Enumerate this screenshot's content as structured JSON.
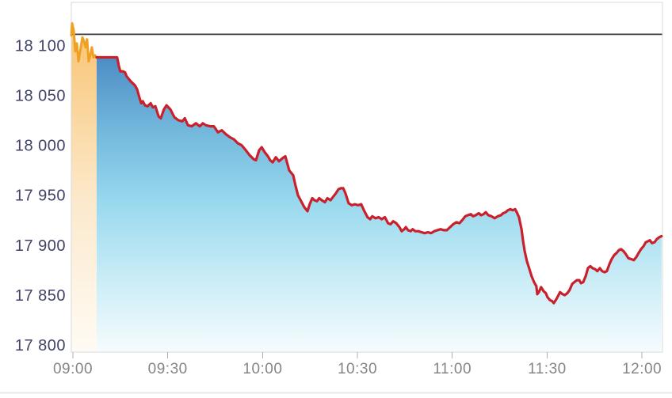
{
  "page": {
    "background": "#ffffff",
    "divider_color": "#e2e8ed"
  },
  "chart_data": {
    "type": "area",
    "x_axis": {
      "tick_labels": [
        "09:00",
        "09:30",
        "10:00",
        "10:30",
        "11:00",
        "11:30",
        "12:00"
      ],
      "tick_minutes": [
        0,
        30,
        60,
        90,
        120,
        150,
        180
      ],
      "range_minutes": [
        -0.5,
        186.5
      ],
      "label_color": "#858585",
      "grid": false
    },
    "y_axis": {
      "tick_labels": [
        "18 100",
        "18 050",
        "18 000",
        "17 950",
        "17 900",
        "17 850",
        "17 800"
      ],
      "tick_values": [
        18100,
        18050,
        18000,
        17950,
        17900,
        17850,
        17800
      ],
      "range": [
        17793,
        18143
      ],
      "label_color": "#424269",
      "grid": false
    },
    "previous_close": {
      "value": 18111,
      "line_color": "#3c3c3c"
    },
    "axis_style": {
      "border_color": "#dadada",
      "tick_color": "#b0b0b0"
    },
    "series": [
      {
        "name": "opening-auction-segment",
        "line_color": "#f0a124",
        "line_width": 3,
        "fill_stops": [
          [
            0,
            "#f9c87c"
          ],
          [
            0.5,
            "#fce9cc"
          ],
          [
            1,
            "#fefbf4"
          ]
        ],
        "points": [
          [
            -0.5,
            18110
          ],
          [
            -0.25,
            18122
          ],
          [
            0.25,
            18115
          ],
          [
            0.75,
            18094
          ],
          [
            1.25,
            18102
          ],
          [
            1.75,
            18084
          ],
          [
            2.5,
            18098
          ],
          [
            3,
            18108
          ],
          [
            3.5,
            18104
          ],
          [
            4,
            18098
          ],
          [
            4.5,
            18106
          ],
          [
            5,
            18084
          ],
          [
            5.5,
            18090
          ],
          [
            6,
            18098
          ],
          [
            6.5,
            18088
          ],
          [
            7,
            18090
          ],
          [
            7.5,
            18088
          ]
        ]
      },
      {
        "name": "main-session-segment",
        "line_color": "#c9202c",
        "line_width": 3.2,
        "fill_stops": [
          [
            0,
            "#4788c1"
          ],
          [
            0.25,
            "#6fb4da"
          ],
          [
            0.5,
            "#97d8ee"
          ],
          [
            0.75,
            "#c8ecf6"
          ],
          [
            1,
            "#f6fcfe"
          ]
        ],
        "points": [
          [
            7.5,
            18088
          ],
          [
            10,
            18088
          ],
          [
            12,
            18088
          ],
          [
            14,
            18088
          ],
          [
            14.5,
            18080
          ],
          [
            15,
            18074
          ],
          [
            15.8,
            18074
          ],
          [
            16.5,
            18073
          ],
          [
            17,
            18069
          ],
          [
            18.3,
            18064
          ],
          [
            19.6,
            18060
          ],
          [
            20.3,
            18056
          ],
          [
            21.1,
            18047
          ],
          [
            21.6,
            18042
          ],
          [
            22.1,
            18044
          ],
          [
            22.8,
            18040
          ],
          [
            23.6,
            18039
          ],
          [
            24.6,
            18042
          ],
          [
            25.3,
            18038
          ],
          [
            26.1,
            18039
          ],
          [
            27.1,
            18029
          ],
          [
            27.8,
            18027
          ],
          [
            28.8,
            18036
          ],
          [
            29.6,
            18040
          ],
          [
            30.8,
            18036
          ],
          [
            32.1,
            18028
          ],
          [
            33.4,
            18025
          ],
          [
            34.6,
            18024
          ],
          [
            35.4,
            18027
          ],
          [
            36.4,
            18020
          ],
          [
            37.6,
            18019
          ],
          [
            38.9,
            18022
          ],
          [
            40.1,
            18019
          ],
          [
            41.1,
            18022
          ],
          [
            42.1,
            18020
          ],
          [
            43.4,
            18019
          ],
          [
            44.6,
            18019
          ],
          [
            45.9,
            18013
          ],
          [
            47.1,
            18015
          ],
          [
            48.4,
            18011
          ],
          [
            49.7,
            18008
          ],
          [
            50.9,
            18006
          ],
          [
            52.2,
            18002
          ],
          [
            53.4,
            18000
          ],
          [
            54.7,
            17995
          ],
          [
            55.9,
            17990
          ],
          [
            57.2,
            17986
          ],
          [
            57.9,
            17985
          ],
          [
            58.9,
            17995
          ],
          [
            59.7,
            17998
          ],
          [
            60.7,
            17993
          ],
          [
            61.7,
            17989
          ],
          [
            62.4,
            17985
          ],
          [
            63.2,
            17983
          ],
          [
            64.2,
            17988
          ],
          [
            65.2,
            17984
          ],
          [
            65.9,
            17986
          ],
          [
            66.7,
            17988
          ],
          [
            67.2,
            17989
          ],
          [
            68.4,
            17975
          ],
          [
            69.7,
            17970
          ],
          [
            70.4,
            17960
          ],
          [
            71.2,
            17950
          ],
          [
            72.2,
            17944
          ],
          [
            73.2,
            17938
          ],
          [
            74.2,
            17934
          ],
          [
            74.9,
            17941
          ],
          [
            75.7,
            17947
          ],
          [
            76.4,
            17945
          ],
          [
            77.2,
            17944
          ],
          [
            77.9,
            17947
          ],
          [
            78.7,
            17945
          ],
          [
            79.7,
            17943
          ],
          [
            80.5,
            17947
          ],
          [
            81.5,
            17945
          ],
          [
            82.2,
            17948
          ],
          [
            83.2,
            17952
          ],
          [
            84,
            17956
          ],
          [
            84.7,
            17957
          ],
          [
            85.5,
            17957
          ],
          [
            86.2,
            17952
          ],
          [
            87.2,
            17942
          ],
          [
            88.2,
            17940
          ],
          [
            89.2,
            17941
          ],
          [
            90.2,
            17940
          ],
          [
            91.2,
            17941
          ],
          [
            92.2,
            17934
          ],
          [
            93.2,
            17928
          ],
          [
            94,
            17926
          ],
          [
            94.7,
            17929
          ],
          [
            95.7,
            17927
          ],
          [
            96.7,
            17928
          ],
          [
            97.7,
            17926
          ],
          [
            98.7,
            17928
          ],
          [
            99.7,
            17922
          ],
          [
            100.5,
            17921
          ],
          [
            101.3,
            17924
          ],
          [
            102.3,
            17922
          ],
          [
            103.3,
            17918
          ],
          [
            104,
            17914
          ],
          [
            104.8,
            17916
          ],
          [
            105.3,
            17918
          ],
          [
            106,
            17915
          ],
          [
            106.8,
            17914
          ],
          [
            107.5,
            17916
          ],
          [
            108.3,
            17914
          ],
          [
            109.3,
            17914
          ],
          [
            110.3,
            17913
          ],
          [
            111.3,
            17912
          ],
          [
            112.3,
            17913
          ],
          [
            113.3,
            17912
          ],
          [
            114.3,
            17914
          ],
          [
            115.3,
            17915
          ],
          [
            116.3,
            17916
          ],
          [
            117.3,
            17915
          ],
          [
            118.3,
            17915
          ],
          [
            119.3,
            17918
          ],
          [
            120.3,
            17921
          ],
          [
            121.3,
            17923
          ],
          [
            122.3,
            17922
          ],
          [
            123.4,
            17926
          ],
          [
            124.1,
            17929
          ],
          [
            124.9,
            17930
          ],
          [
            125.9,
            17931
          ],
          [
            126.6,
            17929
          ],
          [
            127.4,
            17930
          ],
          [
            128.4,
            17932
          ],
          [
            129.1,
            17930
          ],
          [
            129.9,
            17931
          ],
          [
            130.6,
            17933
          ],
          [
            131.4,
            17930
          ],
          [
            132.4,
            17929
          ],
          [
            133.4,
            17927
          ],
          [
            134.4,
            17929
          ],
          [
            135.4,
            17930
          ],
          [
            136.1,
            17932
          ],
          [
            136.9,
            17933
          ],
          [
            137.6,
            17935
          ],
          [
            138.4,
            17936
          ],
          [
            139.1,
            17935
          ],
          [
            139.9,
            17936
          ],
          [
            140.4,
            17933
          ],
          [
            141.1,
            17928
          ],
          [
            141.9,
            17916
          ],
          [
            142.4,
            17904
          ],
          [
            142.9,
            17894
          ],
          [
            143.6,
            17884
          ],
          [
            144.4,
            17876
          ],
          [
            145.1,
            17869
          ],
          [
            145.9,
            17863
          ],
          [
            146.6,
            17859
          ],
          [
            146.9,
            17851
          ],
          [
            147.4,
            17853
          ],
          [
            148.1,
            17858
          ],
          [
            148.9,
            17854
          ],
          [
            149.6,
            17852
          ],
          [
            150.1,
            17848
          ],
          [
            150.9,
            17845
          ],
          [
            151.6,
            17844
          ],
          [
            152.1,
            17842
          ],
          [
            152.9,
            17846
          ],
          [
            153.6,
            17850
          ],
          [
            154.1,
            17853
          ],
          [
            154.9,
            17851
          ],
          [
            155.6,
            17850
          ],
          [
            156.4,
            17852
          ],
          [
            157.1,
            17855
          ],
          [
            157.9,
            17861
          ],
          [
            158.6,
            17863
          ],
          [
            159.4,
            17865
          ],
          [
            160.2,
            17865
          ],
          [
            160.7,
            17862
          ],
          [
            161.4,
            17863
          ],
          [
            162.2,
            17869
          ],
          [
            162.9,
            17877
          ],
          [
            163.7,
            17879
          ],
          [
            164.4,
            17877
          ],
          [
            165.2,
            17876
          ],
          [
            165.9,
            17874
          ],
          [
            166.7,
            17877
          ],
          [
            167.4,
            17874
          ],
          [
            168.2,
            17873
          ],
          [
            168.9,
            17874
          ],
          [
            169.7,
            17881
          ],
          [
            170.4,
            17886
          ],
          [
            171.2,
            17890
          ],
          [
            171.9,
            17892
          ],
          [
            172.7,
            17895
          ],
          [
            173.4,
            17896
          ],
          [
            174.2,
            17894
          ],
          [
            174.9,
            17891
          ],
          [
            175.7,
            17887
          ],
          [
            176.7,
            17886
          ],
          [
            177.4,
            17885
          ],
          [
            178.2,
            17888
          ],
          [
            178.9,
            17892
          ],
          [
            179.7,
            17896
          ],
          [
            180.5,
            17899
          ],
          [
            181.2,
            17903
          ],
          [
            182,
            17904
          ],
          [
            182.5,
            17905
          ],
          [
            183.2,
            17902
          ],
          [
            184,
            17903
          ],
          [
            184.7,
            17906
          ],
          [
            185.5,
            17908
          ],
          [
            186.2,
            17909
          ]
        ]
      }
    ]
  }
}
